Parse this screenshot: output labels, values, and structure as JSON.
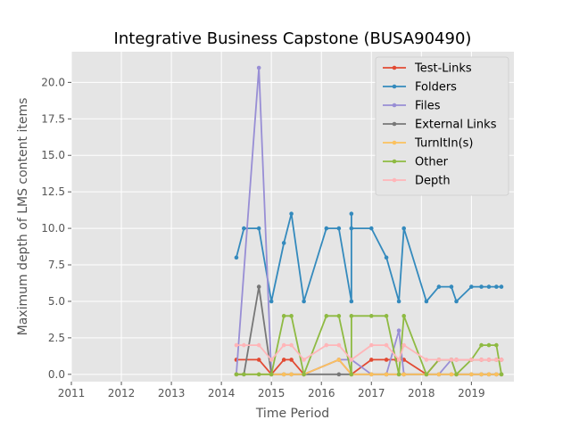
{
  "chart_data": {
    "type": "line",
    "title": "Integrative Business Capstone (BUSA90490)",
    "xlabel": "Time Period",
    "ylabel": "Maximum depth of LMS content items",
    "xlim": [
      2011,
      2019.85
    ],
    "ylim": [
      -0.5,
      22.1
    ],
    "xticks": [
      2011,
      2012,
      2013,
      2014,
      2015,
      2016,
      2017,
      2018,
      2019
    ],
    "yticks": [
      0.0,
      2.5,
      5.0,
      7.5,
      10.0,
      12.5,
      15.0,
      17.5,
      20.0
    ],
    "ytick_labels": [
      "0.0",
      "2.5",
      "5.0",
      "7.5",
      "10.0",
      "12.5",
      "15.0",
      "17.5",
      "20.0"
    ],
    "grid": true,
    "legend_position": "top-right",
    "series": [
      {
        "name": "Test-Links",
        "color": "#E24A33",
        "x": [
          2014.3,
          2014.75,
          2015.0,
          2015.25,
          2015.4,
          2015.65,
          2016.35,
          2016.6,
          2017.0,
          2017.3,
          2017.5,
          2017.65,
          2018.1,
          2018.35,
          2018.6,
          2018.7,
          2019.0,
          2019.2,
          2019.35,
          2019.5,
          2019.6
        ],
        "y": [
          1,
          1,
          0,
          1,
          1,
          0,
          1,
          0,
          1,
          1,
          1,
          1,
          0,
          1,
          1,
          1,
          1,
          1,
          1,
          1,
          1
        ]
      },
      {
        "name": "Folders",
        "color": "#348ABD",
        "x": [
          2014.3,
          2014.45,
          2014.75,
          2015.0,
          2015.25,
          2015.4,
          2015.65,
          2016.1,
          2016.35,
          2016.6,
          2016.6,
          2016.6,
          2017.0,
          2017.3,
          2017.55,
          2017.65,
          2018.1,
          2018.35,
          2018.6,
          2018.7,
          2019.0,
          2019.2,
          2019.35,
          2019.5,
          2019.6
        ],
        "y": [
          8,
          10,
          10,
          5,
          9,
          11,
          5,
          10,
          10,
          5,
          11,
          10,
          10,
          8,
          5,
          10,
          5,
          6,
          6,
          5,
          6,
          6,
          6,
          6,
          6
        ]
      },
      {
        "name": "Files",
        "color": "#988ED5",
        "x": [
          2014.3,
          2014.75,
          2015.0,
          2015.25,
          2015.4,
          2015.65,
          2016.35,
          2016.6,
          2017.0,
          2017.3,
          2017.55,
          2017.65,
          2018.1,
          2018.35,
          2018.6,
          2018.7,
          2019.0,
          2019.2,
          2019.35,
          2019.5,
          2019.6
        ],
        "y": [
          0,
          21,
          0,
          0,
          0,
          0,
          1,
          1,
          0,
          0,
          3,
          0,
          0,
          0,
          1,
          0,
          0,
          0,
          0,
          0,
          0
        ]
      },
      {
        "name": "External Links",
        "color": "#777777",
        "x": [
          2014.3,
          2014.45,
          2014.75,
          2015.0,
          2015.25,
          2015.4,
          2015.65,
          2016.35,
          2016.6,
          2017.0,
          2017.3,
          2017.55,
          2017.65,
          2018.1,
          2018.35,
          2018.6,
          2018.7,
          2019.0,
          2019.2,
          2019.35,
          2019.5,
          2019.6
        ],
        "y": [
          0,
          0,
          6,
          0,
          0,
          0,
          0,
          0,
          0,
          0,
          0,
          0,
          0,
          0,
          0,
          0,
          0,
          0,
          0,
          0,
          0,
          0
        ]
      },
      {
        "name": "TurnItIn(s)",
        "color": "#FBC15E",
        "x": [
          2014.3,
          2014.75,
          2015.0,
          2015.25,
          2015.4,
          2015.65,
          2016.35,
          2016.6,
          2017.0,
          2017.3,
          2017.55,
          2017.65,
          2018.1,
          2018.35,
          2018.6,
          2018.7,
          2019.0,
          2019.2,
          2019.35,
          2019.5,
          2019.6
        ],
        "y": [
          0,
          0,
          0,
          0,
          0,
          0,
          1,
          0,
          0,
          0,
          0,
          0,
          0,
          0,
          0,
          0,
          0,
          0,
          0,
          0,
          0
        ]
      },
      {
        "name": "Other",
        "color": "#8EBA42",
        "x": [
          2014.3,
          2014.45,
          2014.75,
          2015.0,
          2015.25,
          2015.4,
          2015.65,
          2016.1,
          2016.35,
          2016.6,
          2016.6,
          2017.0,
          2017.3,
          2017.55,
          2017.65,
          2018.1,
          2018.35,
          2018.6,
          2018.7,
          2019.0,
          2019.2,
          2019.35,
          2019.5,
          2019.6
        ],
        "y": [
          0,
          0,
          0,
          0,
          4,
          4,
          0,
          4,
          4,
          0,
          4,
          4,
          4,
          0,
          4,
          0,
          1,
          1,
          0,
          1,
          2,
          2,
          2,
          0
        ]
      },
      {
        "name": "Depth",
        "color": "#FFB5B8",
        "x": [
          2014.3,
          2014.45,
          2014.75,
          2015.0,
          2015.25,
          2015.4,
          2015.65,
          2016.1,
          2016.35,
          2016.6,
          2017.0,
          2017.3,
          2017.55,
          2017.65,
          2018.1,
          2018.35,
          2018.6,
          2018.7,
          2019.0,
          2019.2,
          2019.35,
          2019.5,
          2019.6
        ],
        "y": [
          2,
          2,
          2,
          1,
          2,
          2,
          1,
          2,
          2,
          1,
          2,
          2,
          1,
          2,
          1,
          1,
          1,
          1,
          1,
          1,
          1,
          1,
          1
        ]
      }
    ]
  }
}
